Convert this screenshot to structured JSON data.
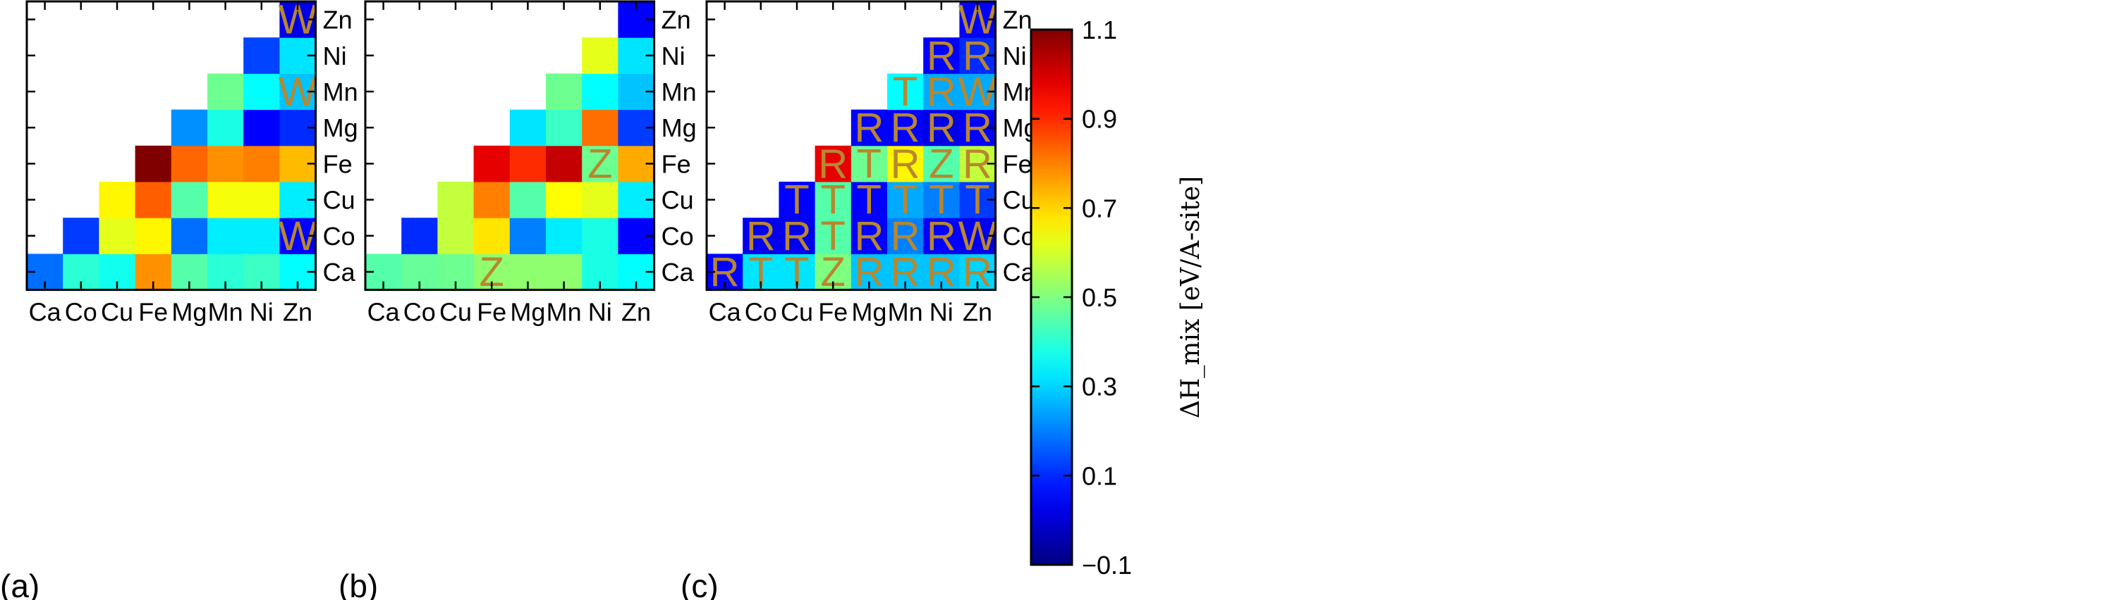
{
  "figure": {
    "panel_labels": [
      "(a)",
      "(b)",
      "(c)"
    ],
    "colorbar_label": "ΔH_mix [eV/A-site]"
  },
  "chart_data": [
    {
      "type": "heatmap",
      "panel": "(a)",
      "x_categories": [
        "Ca",
        "Co",
        "Cu",
        "Fe",
        "Mg",
        "Mn",
        "Ni",
        "Zn"
      ],
      "y_categories": [
        "Ca",
        "Co",
        "Cu",
        "Fe",
        "Mg",
        "Mn",
        "Ni",
        "Zn"
      ],
      "values": [
        [
          0.18,
          0.4,
          0.37,
          0.78,
          0.45,
          0.4,
          0.42,
          0.35
        ],
        [
          null,
          0.12,
          0.62,
          0.66,
          0.18,
          0.33,
          0.33,
          0.05
        ],
        [
          null,
          null,
          0.66,
          0.84,
          0.45,
          0.64,
          0.64,
          0.33
        ],
        [
          null,
          null,
          null,
          1.1,
          0.83,
          0.78,
          0.8,
          0.73
        ],
        [
          null,
          null,
          null,
          null,
          0.22,
          0.38,
          0.05,
          0.1
        ],
        [
          null,
          null,
          null,
          null,
          null,
          0.48,
          0.35,
          0.28
        ],
        [
          null,
          null,
          null,
          null,
          null,
          null,
          0.13,
          0.32
        ],
        [
          null,
          null,
          null,
          null,
          null,
          null,
          null,
          0.02
        ]
      ],
      "labels": [
        [
          "",
          "",
          "",
          "",
          "",
          "",
          "",
          ""
        ],
        [
          null,
          "",
          "",
          "",
          "",
          "",
          "",
          "W"
        ],
        [
          null,
          null,
          "",
          "",
          "",
          "",
          "",
          ""
        ],
        [
          null,
          null,
          null,
          "",
          "",
          "",
          "",
          ""
        ],
        [
          null,
          null,
          null,
          null,
          "",
          "",
          "",
          ""
        ],
        [
          null,
          null,
          null,
          null,
          null,
          "",
          "",
          "W"
        ],
        [
          null,
          null,
          null,
          null,
          null,
          null,
          "",
          ""
        ],
        [
          null,
          null,
          null,
          null,
          null,
          null,
          null,
          "W"
        ]
      ]
    },
    {
      "type": "heatmap",
      "panel": "(b)",
      "x_categories": [
        "Ca",
        "Co",
        "Cu",
        "Fe",
        "Mg",
        "Mn",
        "Ni",
        "Zn"
      ],
      "y_categories": [
        "Ca",
        "Co",
        "Cu",
        "Fe",
        "Mg",
        "Mn",
        "Ni",
        "Zn"
      ],
      "values": [
        [
          0.45,
          0.47,
          0.48,
          0.52,
          0.52,
          0.52,
          0.38,
          0.35
        ],
        [
          null,
          0.1,
          0.58,
          0.68,
          0.2,
          0.33,
          0.38,
          0.05
        ],
        [
          null,
          null,
          0.58,
          0.8,
          0.45,
          0.65,
          0.62,
          0.33
        ],
        [
          null,
          null,
          null,
          0.98,
          0.9,
          1.02,
          0.48,
          0.75
        ],
        [
          null,
          null,
          null,
          null,
          0.32,
          0.42,
          0.82,
          0.12
        ],
        [
          null,
          null,
          null,
          null,
          null,
          0.48,
          0.35,
          0.28
        ],
        [
          null,
          null,
          null,
          null,
          null,
          null,
          0.62,
          0.32
        ],
        [
          null,
          null,
          null,
          null,
          null,
          null,
          null,
          0.05
        ]
      ],
      "labels": [
        [
          "",
          "",
          "",
          "Z",
          "",
          "",
          "",
          ""
        ],
        [
          null,
          "",
          "",
          "",
          "",
          "",
          "",
          ""
        ],
        [
          null,
          null,
          "",
          "",
          "",
          "",
          "",
          ""
        ],
        [
          null,
          null,
          null,
          "",
          "",
          "",
          "Z",
          ""
        ],
        [
          null,
          null,
          null,
          null,
          "",
          "",
          "",
          ""
        ],
        [
          null,
          null,
          null,
          null,
          null,
          "",
          "",
          ""
        ],
        [
          null,
          null,
          null,
          null,
          null,
          null,
          "",
          ""
        ],
        [
          null,
          null,
          null,
          null,
          null,
          null,
          null,
          ""
        ]
      ]
    },
    {
      "type": "heatmap",
      "panel": "(c)",
      "x_categories": [
        "Ca",
        "Co",
        "Cu",
        "Fe",
        "Mg",
        "Mn",
        "Ni",
        "Zn"
      ],
      "y_categories": [
        "Ca",
        "Co",
        "Cu",
        "Fe",
        "Mg",
        "Mn",
        "Ni",
        "Zn"
      ],
      "values": [
        [
          0.05,
          0.32,
          0.32,
          0.5,
          0.28,
          0.28,
          0.28,
          0.3
        ],
        [
          null,
          0.03,
          0.03,
          0.45,
          0.05,
          0.2,
          0.05,
          0.03
        ],
        [
          null,
          null,
          0.05,
          0.45,
          0.05,
          0.25,
          0.2,
          0.12
        ],
        [
          null,
          null,
          null,
          0.98,
          0.48,
          0.66,
          0.45,
          0.58
        ],
        [
          null,
          null,
          null,
          null,
          0.05,
          0.05,
          0.02,
          0.05
        ],
        [
          null,
          null,
          null,
          null,
          null,
          0.35,
          0.25,
          0.25
        ],
        [
          null,
          null,
          null,
          null,
          null,
          null,
          0.05,
          0.1
        ],
        [
          null,
          null,
          null,
          null,
          null,
          null,
          null,
          0.05
        ]
      ],
      "labels": [
        [
          "R",
          "T",
          "T",
          "Z",
          "R",
          "R",
          "R",
          "R"
        ],
        [
          null,
          "R",
          "R",
          "T",
          "R",
          "R",
          "R",
          "W"
        ],
        [
          null,
          null,
          "T",
          "T",
          "T",
          "T",
          "T",
          "T"
        ],
        [
          null,
          null,
          null,
          "R",
          "T",
          "R",
          "Z",
          "R"
        ],
        [
          null,
          null,
          null,
          null,
          "R",
          "R",
          "R",
          "R"
        ],
        [
          null,
          null,
          null,
          null,
          null,
          "T",
          "R",
          "W"
        ],
        [
          null,
          null,
          null,
          null,
          null,
          null,
          "R",
          "R"
        ],
        [
          null,
          null,
          null,
          null,
          null,
          null,
          null,
          "W"
        ]
      ]
    },
    {
      "type": "colorbar",
      "colormap": "jet",
      "vmin": -0.1,
      "vmax": 1.1,
      "tick_labels": [
        "1.1",
        "0.9",
        "0.7",
        "0.5",
        "0.3",
        "0.1",
        "−0.1"
      ],
      "label": "ΔH_mix [eV/A-site]"
    }
  ]
}
